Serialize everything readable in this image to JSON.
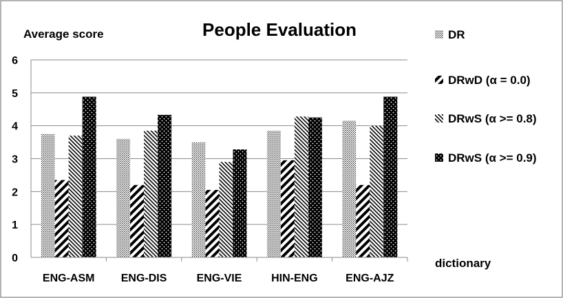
{
  "chart_data": {
    "type": "bar",
    "title": "People Evaluation",
    "ylabel": "Average score",
    "xlabel": "dictionary",
    "ylim": [
      0,
      6
    ],
    "yticks": [
      "0",
      "1",
      "2",
      "3",
      "4",
      "5",
      "6"
    ],
    "categories": [
      "ENG-ASM",
      "ENG-DIS",
      "ENG-VIE",
      "HIN-ENG",
      "ENG-AJZ"
    ],
    "series": [
      {
        "name": "DR",
        "pattern": "dots-dense",
        "values": [
          3.75,
          3.6,
          3.5,
          3.85,
          4.15
        ]
      },
      {
        "name": "DRwD (α = 0.0)",
        "pattern": "diagonal-thick",
        "values": [
          2.35,
          2.2,
          2.05,
          2.95,
          2.2
        ]
      },
      {
        "name": "DRwS (α >= 0.8)",
        "pattern": "diagonal-thin",
        "values": [
          3.7,
          3.85,
          2.9,
          4.28,
          4.0
        ]
      },
      {
        "name": "DRwS (α >= 0.9)",
        "pattern": "black-dots",
        "values": [
          4.88,
          4.33,
          3.28,
          4.25,
          4.88
        ]
      }
    ],
    "legend_position": "right",
    "grid": "horizontal"
  }
}
